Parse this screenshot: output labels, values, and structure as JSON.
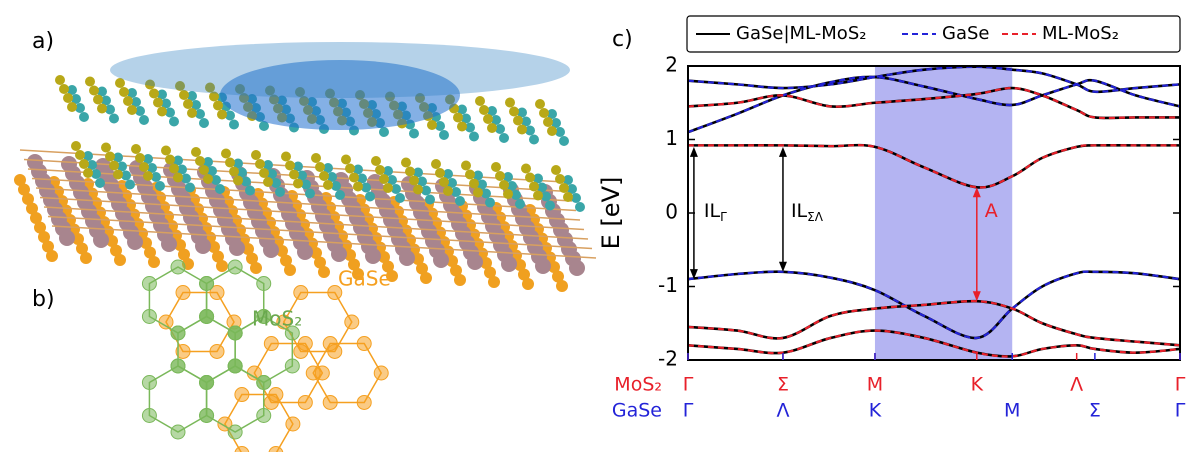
{
  "panels": {
    "a": "a)",
    "b": "b)",
    "c": "c)"
  },
  "panel_b": {
    "gase_label": "GaSe",
    "mos2_label": "MoS₂"
  },
  "chart_data": {
    "type": "line",
    "ylabel": "E [eV]",
    "ylim": [
      -2,
      2
    ],
    "yticks": [
      -2,
      -1,
      0,
      1,
      2
    ],
    "xlim": [
      0,
      1
    ],
    "x": [
      0,
      0.1,
      0.193,
      0.29,
      0.38,
      0.48,
      0.587,
      0.659,
      0.72,
      0.79,
      0.827,
      0.91,
      1
    ],
    "highlight_x": [
      0.38,
      0.659
    ],
    "highlight_color": "#b4b4f2",
    "x_label_rows": [
      {
        "name": "MoS₂",
        "color": "#e8202a",
        "ticks": [
          {
            "value": 0,
            "label": "Γ"
          },
          {
            "value": 0.193,
            "label": "Σ"
          },
          {
            "value": 0.38,
            "label": "M"
          },
          {
            "value": 0.587,
            "label": "K"
          },
          {
            "value": 0.79,
            "label": "Λ"
          },
          {
            "value": 1,
            "label": "Γ"
          }
        ]
      },
      {
        "name": "GaSe",
        "color": "#2323d8",
        "ticks": [
          {
            "value": 0,
            "label": "Γ"
          },
          {
            "value": 0.193,
            "label": "Λ"
          },
          {
            "value": 0.38,
            "label": "K"
          },
          {
            "value": 0.659,
            "label": "M"
          },
          {
            "value": 0.827,
            "label": "Σ"
          },
          {
            "value": 1,
            "label": "Γ"
          }
        ]
      }
    ],
    "series": [
      {
        "name": "GaSe|ML-MoS₂",
        "color": "#000000",
        "dashed": false,
        "bands": [
          [
            0.92,
            0.92,
            0.92,
            0.91,
            0.9,
            0.62,
            0.35,
            0.5,
            0.75,
            0.9,
            0.92,
            0.92,
            0.92
          ],
          [
            1.1,
            1.35,
            1.6,
            1.78,
            1.85,
            1.72,
            1.55,
            1.47,
            1.6,
            1.75,
            1.8,
            1.6,
            1.45
          ],
          [
            1.45,
            1.5,
            1.6,
            1.45,
            1.5,
            1.55,
            1.62,
            1.7,
            1.6,
            1.4,
            1.3,
            1.3,
            1.3
          ],
          [
            1.8,
            1.75,
            1.7,
            1.75,
            1.85,
            1.95,
            1.99,
            1.95,
            1.9,
            1.75,
            1.65,
            1.7,
            1.75
          ],
          [
            -0.9,
            -0.83,
            -0.8,
            -0.88,
            -1.05,
            -1.4,
            -1.7,
            -1.3,
            -1.0,
            -0.82,
            -0.8,
            -0.82,
            -0.9
          ],
          [
            -1.55,
            -1.6,
            -1.7,
            -1.4,
            -1.3,
            -1.25,
            -1.2,
            -1.3,
            -1.5,
            -1.65,
            -1.7,
            -1.75,
            -1.8
          ],
          [
            -1.8,
            -1.85,
            -1.9,
            -1.7,
            -1.6,
            -1.7,
            -1.9,
            -1.95,
            -1.85,
            -1.8,
            -1.85,
            -1.9,
            -1.85
          ]
        ]
      },
      {
        "name": "GaSe",
        "color": "#2323d8",
        "dashed": true,
        "bands": [
          [
            1.1,
            1.35,
            1.6,
            1.78,
            1.85,
            1.72,
            1.55,
            1.47,
            1.6,
            1.75,
            1.8,
            1.6,
            1.45
          ],
          [
            1.8,
            1.75,
            1.7,
            1.75,
            1.85,
            1.95,
            1.99,
            1.95,
            1.9,
            1.75,
            1.65,
            1.7,
            1.75
          ],
          [
            -0.9,
            -0.83,
            -0.8,
            -0.88,
            -1.05,
            -1.4,
            -1.7,
            -1.3,
            -1.0,
            -0.82,
            -0.8,
            -0.82,
            -0.9
          ]
        ]
      },
      {
        "name": "ML-MoS₂",
        "color": "#e8202a",
        "dashed": true,
        "bands": [
          [
            0.92,
            0.92,
            0.92,
            0.91,
            0.9,
            0.62,
            0.35,
            0.5,
            0.75,
            0.9,
            0.92,
            0.92,
            0.92
          ],
          [
            1.45,
            1.5,
            1.6,
            1.45,
            1.5,
            1.55,
            1.62,
            1.7,
            1.6,
            1.4,
            1.3,
            1.3,
            1.3
          ],
          [
            -1.55,
            -1.6,
            -1.7,
            -1.4,
            -1.3,
            -1.25,
            -1.2,
            -1.3,
            -1.5,
            -1.65,
            -1.7,
            -1.75,
            -1.8
          ],
          [
            -1.8,
            -1.85,
            -1.9,
            -1.7,
            -1.6,
            -1.7,
            -1.9,
            -1.95,
            -1.85,
            -1.8,
            -1.85,
            -1.9,
            -1.85
          ]
        ]
      }
    ],
    "annotations": [
      {
        "text": "IL",
        "sub": "Γ",
        "x": 0.012,
        "from": -0.9,
        "to": 0.9,
        "color": "#000000"
      },
      {
        "text": "IL",
        "sub": "ΣΛ",
        "x": 0.193,
        "from": -0.8,
        "to": 0.9,
        "color": "#000000"
      },
      {
        "text": "A",
        "x": 0.587,
        "from": -1.2,
        "to": 0.35,
        "color": "#e8202a"
      }
    ]
  }
}
